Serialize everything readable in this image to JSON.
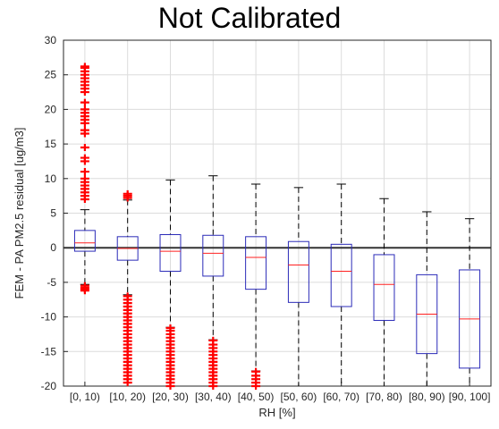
{
  "chart_data": {
    "type": "box",
    "title": "Not Calibrated",
    "xlabel": "RH [%]",
    "ylabel": "FEM - PA PM2.5 residual [ug/m3]",
    "ylim": [
      -20,
      30
    ],
    "yticks": [
      -20,
      -15,
      -10,
      -5,
      0,
      5,
      10,
      15,
      20,
      25,
      30
    ],
    "grid": true,
    "reference_line_y": 0,
    "colors": {
      "box": "#2b2bb8",
      "median": "#ff2020",
      "whisker": "#000000",
      "outlier": "#ff0000",
      "grid": "#dcdcdc",
      "zero_line": "#333333"
    },
    "categories": [
      "[0, 10)",
      "[10, 20)",
      "[20, 30)",
      "[30, 40)",
      "[40, 50)",
      "[50, 60)",
      "[60, 70)",
      "[70, 80)",
      "[80, 90)",
      "[90, 100]"
    ],
    "boxes": [
      {
        "category": "[0, 10)",
        "q1": -0.5,
        "median": 0.7,
        "q3": 2.5,
        "whisker_low": -5.3,
        "whisker_high": 5.5,
        "outliers": [
          -6.2,
          -6,
          -5.8,
          -5.5,
          7,
          7.5,
          8,
          8.5,
          9,
          9.5,
          10,
          11,
          12.5,
          13,
          14.5,
          16.5,
          17,
          18,
          18.5,
          19,
          19.5,
          20,
          21,
          22.5,
          23,
          23.5,
          24,
          24.5,
          25,
          25.5,
          26,
          26.2
        ]
      },
      {
        "category": "[10, 20)",
        "q1": -1.8,
        "median": -0.1,
        "q3": 1.6,
        "whisker_low": -6.8,
        "whisker_high": 6.9,
        "outliers": [
          7.2,
          7.5,
          7.8,
          -7,
          -7.5,
          -8,
          -8.5,
          -9,
          -9.5,
          -10,
          -10.5,
          -11,
          -11.5,
          -12,
          -12.5,
          -13,
          -13.5,
          -14,
          -14.5,
          -15,
          -15.5,
          -16,
          -16.5,
          -17,
          -17.5,
          -18,
          -18.5,
          -19,
          -19.5
        ]
      },
      {
        "category": "[20, 30)",
        "q1": -3.4,
        "median": -0.5,
        "q3": 1.9,
        "whisker_low": -11.5,
        "whisker_high": 9.8,
        "outliers": [
          -11.6,
          -12,
          -12.5,
          -13,
          -13.5,
          -14,
          -14.5,
          -15,
          -15.5,
          -16,
          -16.5,
          -17,
          -17.5,
          -18,
          -18.5,
          -19,
          -19.5,
          -20
        ]
      },
      {
        "category": "[30, 40)",
        "q1": -4.1,
        "median": -0.8,
        "q3": 1.8,
        "whisker_low": -13.3,
        "whisker_high": 10.4,
        "outliers": [
          -13.4,
          -14,
          -14.5,
          -15,
          -15.5,
          -16,
          -16.5,
          -17,
          -17.5,
          -18,
          -18.5,
          -19,
          -19.5,
          -20
        ]
      },
      {
        "category": "[40, 50)",
        "q1": -6.0,
        "median": -1.4,
        "q3": 1.6,
        "whisker_low": -17.8,
        "whisker_high": 9.2,
        "outliers": [
          -17.9,
          -18.5,
          -19,
          -19.5,
          -20
        ]
      },
      {
        "category": "[50, 60)",
        "q1": -7.9,
        "median": -2.5,
        "q3": 0.9,
        "whisker_low": -20,
        "whisker_high": 8.7,
        "outliers": []
      },
      {
        "category": "[60, 70)",
        "q1": -8.5,
        "median": -3.4,
        "q3": 0.5,
        "whisker_low": -20,
        "whisker_high": 9.2,
        "outliers": []
      },
      {
        "category": "[70, 80)",
        "q1": -10.5,
        "median": -5.3,
        "q3": -1.0,
        "whisker_low": -20,
        "whisker_high": 7.1,
        "outliers": []
      },
      {
        "category": "[80, 90)",
        "q1": -15.3,
        "median": -9.6,
        "q3": -3.9,
        "whisker_low": -20,
        "whisker_high": 5.2,
        "outliers": []
      },
      {
        "category": "[90, 100]",
        "q1": -17.4,
        "median": -10.3,
        "q3": -3.2,
        "whisker_low": -20,
        "whisker_high": 4.2,
        "outliers": []
      }
    ]
  }
}
